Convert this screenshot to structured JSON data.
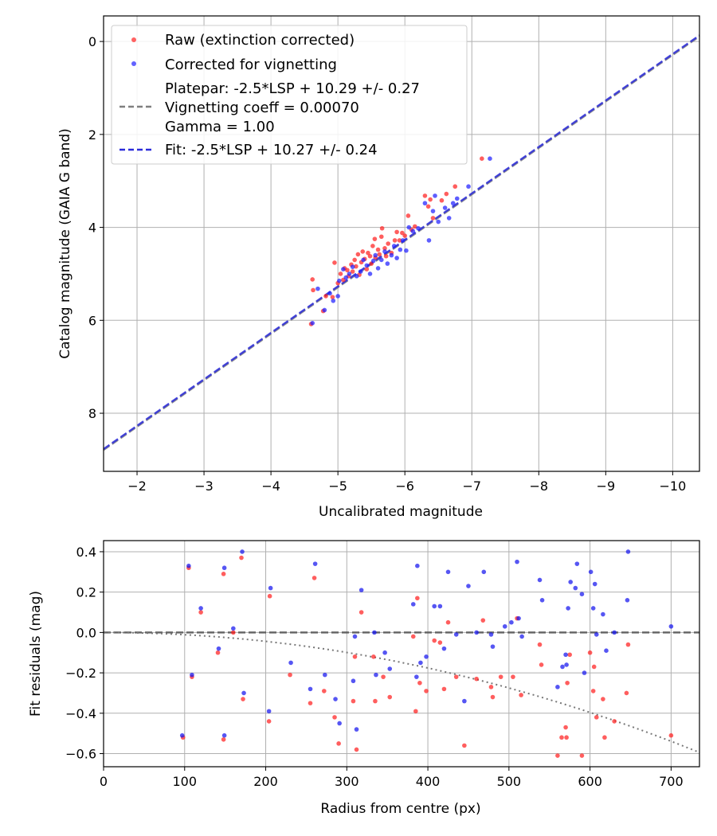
{
  "chart_data": [
    {
      "type": "scatter",
      "xlabel": "Uncalibrated magnitude",
      "ylabel": "Catalog magnitude (GAIA G band)",
      "xlim": [
        -1.5,
        -10.4
      ],
      "ylim": [
        9.25,
        -0.55
      ],
      "x_inverted": true,
      "y_inverted": true,
      "grid": true,
      "legend_position": "top-left",
      "xticks": [
        -2,
        -3,
        -4,
        -5,
        -6,
        -7,
        -8,
        -9,
        -10
      ],
      "xtick_labels": [
        "−2",
        "−3",
        "−4",
        "−5",
        "−6",
        "−7",
        "−8",
        "−9",
        "−10"
      ],
      "yticks": [
        0,
        2,
        4,
        6,
        8
      ],
      "ytick_labels": [
        "0",
        "2",
        "4",
        "6",
        "8"
      ],
      "colors": {
        "raw": "#ff2020",
        "corrected": "#2020ff",
        "platepar_line": "#7f7f7f",
        "fit_line": "#2b2bd9"
      },
      "series": [
        {
          "name": "Raw (extinction corrected)",
          "kind": "scatter",
          "color": "#ff2020",
          "points": [
            [
              -4.6,
              6.08
            ],
            [
              -4.62,
              5.12
            ],
            [
              -4.63,
              5.35
            ],
            [
              -4.78,
              5.8
            ],
            [
              -4.82,
              5.48
            ],
            [
              -4.92,
              5.5
            ],
            [
              -4.95,
              4.76
            ],
            [
              -5.0,
              5.2
            ],
            [
              -5.04,
              5.0
            ],
            [
              -5.08,
              5.13
            ],
            [
              -5.1,
              4.88
            ],
            [
              -5.14,
              4.92
            ],
            [
              -5.16,
              5.05
            ],
            [
              -5.2,
              4.8
            ],
            [
              -5.22,
              4.95
            ],
            [
              -5.25,
              4.7
            ],
            [
              -5.27,
              4.84
            ],
            [
              -5.3,
              4.58
            ],
            [
              -5.32,
              5.02
            ],
            [
              -5.35,
              4.75
            ],
            [
              -5.37,
              4.52
            ],
            [
              -5.4,
              4.68
            ],
            [
              -5.43,
              4.9
            ],
            [
              -5.45,
              4.55
            ],
            [
              -5.48,
              4.62
            ],
            [
              -5.5,
              4.78
            ],
            [
              -5.52,
              4.4
            ],
            [
              -5.55,
              4.25
            ],
            [
              -5.56,
              4.65
            ],
            [
              -5.6,
              4.48
            ],
            [
              -5.62,
              4.58
            ],
            [
              -5.65,
              4.2
            ],
            [
              -5.66,
              4.02
            ],
            [
              -5.7,
              4.45
            ],
            [
              -5.72,
              4.62
            ],
            [
              -5.75,
              4.35
            ],
            [
              -5.8,
              4.55
            ],
            [
              -5.85,
              4.28
            ],
            [
              -5.88,
              4.1
            ],
            [
              -5.92,
              4.28
            ],
            [
              -5.96,
              4.12
            ],
            [
              -6.0,
              4.18
            ],
            [
              -6.05,
              3.75
            ],
            [
              -6.1,
              4.05
            ],
            [
              -6.15,
              3.98
            ],
            [
              -6.3,
              3.32
            ],
            [
              -6.35,
              3.55
            ],
            [
              -6.38,
              3.4
            ],
            [
              -6.42,
              3.8
            ],
            [
              -6.55,
              3.42
            ],
            [
              -6.62,
              3.28
            ],
            [
              -6.75,
              3.12
            ],
            [
              -7.15,
              2.52
            ]
          ]
        },
        {
          "name": "Corrected for vignetting",
          "kind": "scatter",
          "color": "#2020ff",
          "points": [
            [
              -4.62,
              6.06
            ],
            [
              -4.7,
              5.32
            ],
            [
              -4.8,
              5.78
            ],
            [
              -4.88,
              5.42
            ],
            [
              -4.93,
              5.58
            ],
            [
              -5.0,
              5.48
            ],
            [
              -5.02,
              5.15
            ],
            [
              -5.08,
              4.9
            ],
            [
              -5.12,
              5.08
            ],
            [
              -5.17,
              5.0
            ],
            [
              -5.22,
              4.85
            ],
            [
              -5.28,
              5.05
            ],
            [
              -5.34,
              4.95
            ],
            [
              -5.38,
              4.7
            ],
            [
              -5.43,
              4.82
            ],
            [
              -5.48,
              5.0
            ],
            [
              -5.53,
              4.72
            ],
            [
              -5.56,
              4.6
            ],
            [
              -5.6,
              4.88
            ],
            [
              -5.65,
              4.7
            ],
            [
              -5.7,
              4.52
            ],
            [
              -5.74,
              4.78
            ],
            [
              -5.8,
              4.6
            ],
            [
              -5.84,
              4.4
            ],
            [
              -5.88,
              4.66
            ],
            [
              -5.93,
              4.48
            ],
            [
              -5.97,
              4.28
            ],
            [
              -6.02,
              4.5
            ],
            [
              -6.06,
              4.0
            ],
            [
              -6.12,
              4.08
            ],
            [
              -6.2,
              4.02
            ],
            [
              -6.3,
              3.48
            ],
            [
              -6.36,
              4.28
            ],
            [
              -6.42,
              3.65
            ],
            [
              -6.45,
              3.32
            ],
            [
              -6.5,
              3.88
            ],
            [
              -6.6,
              3.58
            ],
            [
              -6.66,
              3.8
            ],
            [
              -6.72,
              3.48
            ],
            [
              -6.78,
              3.38
            ],
            [
              -6.95,
              3.12
            ],
            [
              -7.27,
              2.52
            ]
          ]
        },
        {
          "name": "Platepar: -2.5*LSP + 10.29 +/- 0.27\nVignetting coeff = 0.00070\nGamma = 1.00",
          "kind": "line",
          "color": "#7f7f7f",
          "x": [
            -1.5,
            -10.4
          ],
          "y": [
            8.79,
            -0.11
          ]
        },
        {
          "name": "Fit: -2.5*LSP + 10.27 +/- 0.24",
          "kind": "line",
          "color": "#2b2bd9",
          "x": [
            -1.5,
            -10.4
          ],
          "y": [
            8.77,
            -0.13
          ]
        }
      ]
    },
    {
      "type": "scatter",
      "xlabel": "Radius from centre (px)",
      "ylabel": "Fit residuals (mag)",
      "xlim": [
        0,
        735
      ],
      "ylim": [
        -0.665,
        0.455
      ],
      "grid": true,
      "xticks": [
        0,
        100,
        200,
        300,
        400,
        500,
        600,
        700
      ],
      "xtick_labels": [
        "0",
        "100",
        "200",
        "300",
        "400",
        "500",
        "600",
        "700"
      ],
      "yticks": [
        0.4,
        0.2,
        0.0,
        -0.2,
        -0.4,
        -0.6
      ],
      "ytick_labels": [
        "0.4",
        "0.2",
        "0.0",
        "−0.2",
        "−0.4",
        "−0.6"
      ],
      "colors": {
        "raw": "#ff2020",
        "corrected": "#1515ee",
        "zero_line": "#555555",
        "vignetting_curve": "#777777"
      },
      "series": [
        {
          "kind": "scatter",
          "color": "#ff2020",
          "points": [
            [
              98,
              -0.52
            ],
            [
              105,
              0.32
            ],
            [
              109,
              -0.22
            ],
            [
              120,
              0.1
            ],
            [
              141,
              -0.1
            ],
            [
              148,
              0.29
            ],
            [
              148,
              -0.53
            ],
            [
              160,
              0.0
            ],
            [
              170,
              0.37
            ],
            [
              172,
              -0.33
            ],
            [
              204,
              -0.44
            ],
            [
              205,
              0.18
            ],
            [
              230,
              -0.21
            ],
            [
              255,
              -0.35
            ],
            [
              260,
              0.27
            ],
            [
              272,
              -0.29
            ],
            [
              285,
              -0.42
            ],
            [
              290,
              -0.55
            ],
            [
              308,
              -0.34
            ],
            [
              310,
              -0.12
            ],
            [
              312,
              -0.58
            ],
            [
              318,
              0.1
            ],
            [
              333,
              -0.12
            ],
            [
              335,
              -0.34
            ],
            [
              345,
              -0.22
            ],
            [
              353,
              -0.32
            ],
            [
              382,
              -0.02
            ],
            [
              385,
              -0.39
            ],
            [
              387,
              0.17
            ],
            [
              390,
              -0.25
            ],
            [
              398,
              -0.29
            ],
            [
              408,
              -0.04
            ],
            [
              415,
              -0.05
            ],
            [
              420,
              -0.28
            ],
            [
              425,
              0.05
            ],
            [
              435,
              -0.22
            ],
            [
              445,
              -0.56
            ],
            [
              460,
              -0.23
            ],
            [
              468,
              0.06
            ],
            [
              480,
              -0.32
            ],
            [
              478,
              -0.27
            ],
            [
              490,
              -0.22
            ],
            [
              505,
              -0.22
            ],
            [
              510,
              0.07
            ],
            [
              515,
              -0.31
            ],
            [
              538,
              -0.06
            ],
            [
              540,
              -0.16
            ],
            [
              560,
              -0.61
            ],
            [
              565,
              -0.52
            ],
            [
              570,
              -0.47
            ],
            [
              571,
              -0.52
            ],
            [
              572,
              -0.25
            ],
            [
              575,
              -0.11
            ],
            [
              590,
              -0.61
            ],
            [
              600,
              -0.1
            ],
            [
              604,
              -0.29
            ],
            [
              605,
              -0.17
            ],
            [
              608,
              -0.42
            ],
            [
              616,
              -0.33
            ],
            [
              618,
              -0.52
            ],
            [
              630,
              -0.44
            ],
            [
              645,
              -0.3
            ],
            [
              647,
              -0.06
            ],
            [
              700,
              -0.51
            ]
          ]
        },
        {
          "kind": "scatter",
          "color": "#1515ee",
          "points": [
            [
              97,
              -0.51
            ],
            [
              105,
              0.33
            ],
            [
              109,
              -0.21
            ],
            [
              120,
              0.12
            ],
            [
              142,
              -0.08
            ],
            [
              149,
              0.32
            ],
            [
              149,
              -0.51
            ],
            [
              160,
              0.02
            ],
            [
              171,
              0.4
            ],
            [
              173,
              -0.3
            ],
            [
              204,
              -0.39
            ],
            [
              206,
              0.22
            ],
            [
              231,
              -0.15
            ],
            [
              255,
              -0.28
            ],
            [
              261,
              0.34
            ],
            [
              273,
              -0.21
            ],
            [
              286,
              -0.33
            ],
            [
              291,
              -0.45
            ],
            [
              308,
              -0.24
            ],
            [
              310,
              -0.02
            ],
            [
              312,
              -0.48
            ],
            [
              318,
              0.21
            ],
            [
              334,
              0.0
            ],
            [
              336,
              -0.21
            ],
            [
              347,
              -0.1
            ],
            [
              353,
              -0.18
            ],
            [
              382,
              0.14
            ],
            [
              386,
              -0.22
            ],
            [
              387,
              0.33
            ],
            [
              391,
              -0.15
            ],
            [
              398,
              -0.12
            ],
            [
              408,
              0.13
            ],
            [
              415,
              0.13
            ],
            [
              420,
              -0.08
            ],
            [
              425,
              0.3
            ],
            [
              435,
              -0.01
            ],
            [
              445,
              -0.34
            ],
            [
              450,
              0.23
            ],
            [
              460,
              0.0
            ],
            [
              469,
              0.3
            ],
            [
              480,
              -0.07
            ],
            [
              478,
              -0.01
            ],
            [
              495,
              0.03
            ],
            [
              503,
              0.05
            ],
            [
              510,
              0.35
            ],
            [
              512,
              0.07
            ],
            [
              516,
              -0.02
            ],
            [
              538,
              0.26
            ],
            [
              541,
              0.16
            ],
            [
              560,
              -0.27
            ],
            [
              566,
              -0.17
            ],
            [
              570,
              -0.11
            ],
            [
              571,
              -0.16
            ],
            [
              573,
              0.12
            ],
            [
              576,
              0.25
            ],
            [
              582,
              0.22
            ],
            [
              584,
              0.34
            ],
            [
              590,
              0.19
            ],
            [
              593,
              -0.2
            ],
            [
              601,
              0.3
            ],
            [
              604,
              0.12
            ],
            [
              606,
              0.24
            ],
            [
              608,
              -0.01
            ],
            [
              616,
              0.09
            ],
            [
              620,
              -0.09
            ],
            [
              630,
              0.0
            ],
            [
              646,
              0.16
            ],
            [
              647,
              0.4
            ],
            [
              700,
              0.03
            ]
          ]
        },
        {
          "kind": "line",
          "color": "#555555",
          "x": [
            0,
            735
          ],
          "y": [
            0,
            0
          ]
        },
        {
          "kind": "curve",
          "color": "#777777",
          "equation": "y = -1.1e-6 * r^2",
          "x": [
            0,
            735
          ]
        }
      ]
    }
  ]
}
